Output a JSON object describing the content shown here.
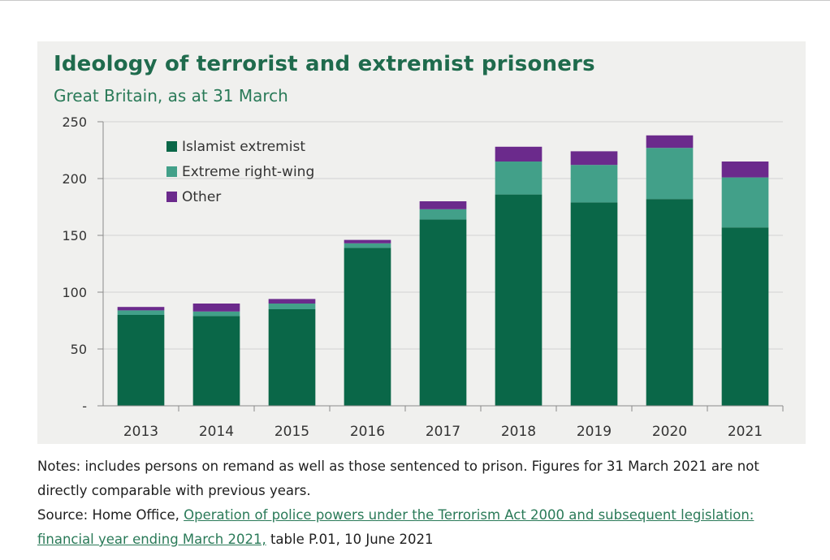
{
  "chart_data": {
    "type": "bar",
    "stacked": true,
    "title": "Ideology of terrorist and extremist prisoners",
    "subtitle": "Great Britain, as at 31 March",
    "categories": [
      "2013",
      "2014",
      "2015",
      "2016",
      "2017",
      "2018",
      "2019",
      "2020",
      "2021"
    ],
    "series": [
      {
        "name": "Islamist extremist",
        "color": "#0a6748",
        "values": [
          80,
          79,
          85,
          139,
          164,
          186,
          179,
          182,
          157
        ]
      },
      {
        "name": "Extreme right-wing",
        "color": "#42a089",
        "values": [
          4,
          4,
          5,
          4,
          9,
          29,
          33,
          45,
          44
        ]
      },
      {
        "name": "Other",
        "color": "#6b2a8c",
        "values": [
          3,
          7,
          4,
          3,
          7,
          13,
          12,
          11,
          14
        ]
      }
    ],
    "ylim": [
      0,
      250
    ],
    "yticks": [
      0,
      50,
      100,
      150,
      200,
      250
    ],
    "ytick_labels": [
      "-",
      "50",
      "100",
      "150",
      "200",
      "250"
    ],
    "grid": true,
    "legend_position": "top-left"
  },
  "notes": {
    "line1": "Notes: includes persons on remand as well as those sentenced to prison. Figures for 31 March 2021 are not directly comparable with previous years.",
    "source_prefix": "Source:  Home Office, ",
    "source_link": "Operation of police powers under the Terrorism Act 2000 and subsequent legislation: financial year ending March 2021,",
    "source_suffix": " table P.01, 10 June 2021"
  }
}
